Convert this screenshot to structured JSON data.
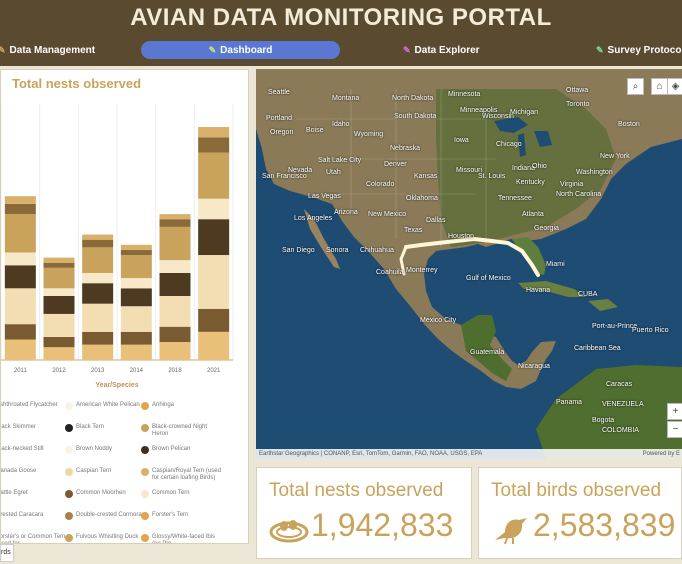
{
  "header": {
    "title": "AVIAN DATA MONITORING PORTAL"
  },
  "nav": [
    {
      "label": "Data Management",
      "icon": "pencil-icon",
      "active": false
    },
    {
      "label": "Dashboard",
      "icon": "pencil-icon",
      "active": true
    },
    {
      "label": "Data Explorer",
      "icon": "pencil-icon",
      "active": false
    },
    {
      "label": "Survey Protocols",
      "icon": "pencil-icon",
      "active": false
    }
  ],
  "chart": {
    "title": "Total nests observed",
    "xlabel": "Year/Species"
  },
  "chart_data": {
    "type": "bar",
    "stacked": true,
    "categories": [
      "2011",
      "2012",
      "2013",
      "2014",
      "2018",
      "2021"
    ],
    "totals": [
      64,
      40,
      49,
      45,
      57,
      91
    ],
    "segment_colors": [
      "#e9c07a",
      "#7a5a30",
      "#f3deb3",
      "#4e3a20",
      "#f7e8c8",
      "#c9a35b",
      "#8b6a3a",
      "#d9b06a"
    ],
    "segments": [
      [
        8,
        6,
        14,
        9,
        5,
        15,
        4,
        3
      ],
      [
        5,
        4,
        9,
        7,
        3,
        8,
        2,
        2
      ],
      [
        6,
        5,
        11,
        8,
        4,
        10,
        3,
        2
      ],
      [
        6,
        5,
        10,
        7,
        4,
        9,
        2,
        2
      ],
      [
        7,
        6,
        12,
        9,
        5,
        13,
        3,
        2
      ],
      [
        11,
        9,
        21,
        14,
        8,
        18,
        6,
        4
      ]
    ],
    "title": "Total nests observed",
    "xlabel": "Year/Species"
  },
  "legend": [
    {
      "label": "Ashthroated Flycatcher",
      "color": "#f3e3c3"
    },
    {
      "label": "American White Pelican",
      "color": "#fbf3e2"
    },
    {
      "label": "Anhinga",
      "color": "#e0a64f"
    },
    {
      "label": "Black Skimmer",
      "color": "#f6ead2"
    },
    {
      "label": "Black Tern",
      "color": "#222222"
    },
    {
      "label": "Black-crowned Night Heron",
      "color": "#c9a35b"
    },
    {
      "label": "Black-necked Stilt",
      "color": "#f6ead2"
    },
    {
      "label": "Brown Noddy",
      "color": "#fbf3e2"
    },
    {
      "label": "Brown Pelican",
      "color": "#3f2f1c"
    },
    {
      "label": "Canada Goose",
      "color": "#f0d7a6"
    },
    {
      "label": "Caspian Tern",
      "color": "#f0d7a6"
    },
    {
      "label": "Caspian/Royal Tern (used for certain loafing Birds)",
      "color": "#d9b06a"
    },
    {
      "label": "Cattle Egret",
      "color": "#f6ead2"
    },
    {
      "label": "Common Moorhen",
      "color": "#7a5a30"
    },
    {
      "label": "Common Tern",
      "color": "#f7e8c8"
    },
    {
      "label": "Crested Caracara",
      "color": "#f6ead2"
    },
    {
      "label": "Double-crested Cormorant",
      "color": "#a88048"
    },
    {
      "label": "Forster's Tern",
      "color": "#e0a64f"
    },
    {
      "label": "Forster's or Common Tern (used for",
      "color": "#f6ead2"
    },
    {
      "label": "Fulvous Whistling Duck",
      "color": "#c9a35b"
    },
    {
      "label": "Glossy/White-faced Ibis (no Plg...",
      "color": "#e0a64f"
    }
  ],
  "map": {
    "labels": [
      "Seattle",
      "Portland",
      "North Dakota",
      "Minnesota",
      "Ottawa",
      "Montana",
      "Boise",
      "South Dakota",
      "Wisconsin",
      "Toronto",
      "Oregon",
      "Idaho",
      "Wyoming",
      "Minneapolis",
      "Michigan",
      "Boston",
      "Nebraska",
      "Iowa",
      "Chicago",
      "New York",
      "Salt Lake City",
      "Denver",
      "Indiana",
      "Washington",
      "Nevada",
      "Utah",
      "Kansas",
      "Missouri",
      "Ohio",
      "Virginia",
      "San Francisco",
      "Colorado",
      "St. Louis",
      "Kentucky",
      "Las Vegas",
      "Oklahoma",
      "Tennessee",
      "North Carolina",
      "Los Angeles",
      "Arizona",
      "New Mexico",
      "Dallas",
      "Atlanta",
      "Texas",
      "Georgia",
      "San Diego",
      "Houston",
      "Sonora",
      "Chihuahua",
      "Gulf of Mexico",
      "Miami",
      "Monterrey",
      "Havana",
      "CUBA",
      "Mexico City",
      "Port-au-Prince",
      "Guatemala",
      "Nicaragua",
      "Caribbean Sea",
      "Caracas",
      "Panama",
      "Bogota",
      "VENEZUELA",
      "COLOMBIA",
      "Puerto Rico",
      "Coahuila"
    ],
    "attribution": "Earthstar Geographics | CONANP, Esri, TomTom, Garmin, FAO, NOAA, USGS, EPA",
    "powered_by": "Powered by E",
    "zoom_in": "+",
    "zoom_out": "−"
  },
  "stats": [
    {
      "label": "Total nests observed",
      "value": "1,942,833",
      "icon": "nest-icon"
    },
    {
      "label": "Total birds observed",
      "value": "2,583,839",
      "icon": "bird-icon"
    }
  ],
  "bottom_tab": "rds"
}
